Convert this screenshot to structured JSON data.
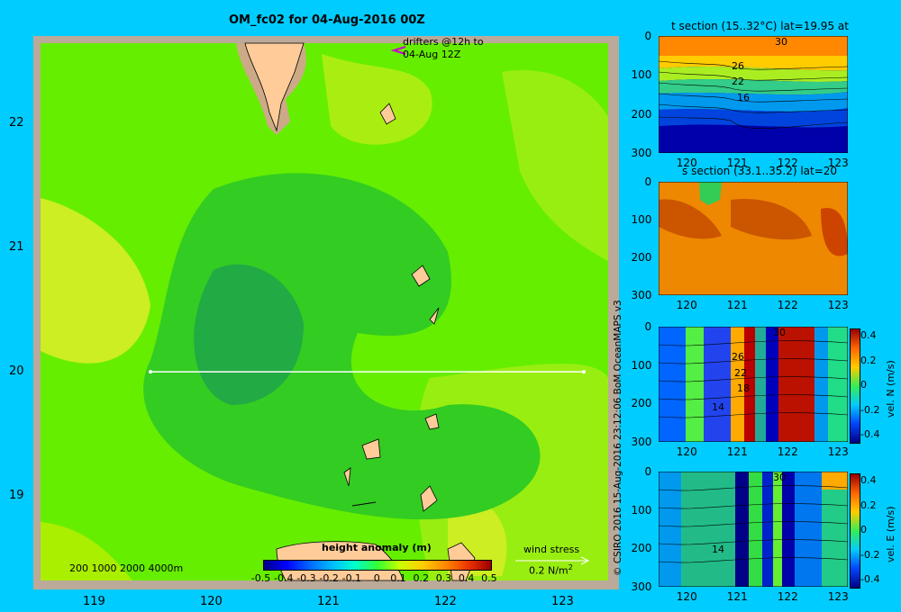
{
  "chart_data": [
    {
      "type": "heatmap",
      "title": "OM_fc02 for 04-Aug-2016 00Z",
      "xticks": [
        "119",
        "120",
        "121",
        "122",
        "123"
      ],
      "yticks": [
        "22",
        "21",
        "20",
        "19"
      ],
      "xlim": [
        118.5,
        123.5
      ],
      "ylim": [
        18.25,
        22.7
      ],
      "colorbar": {
        "label": "height anomaly  (m)",
        "ticks": [
          "-0.5",
          "-0.4",
          "-0.3",
          "-0.2",
          "-0.1",
          "0",
          "0.1",
          "0.2",
          "0.3",
          "0.4",
          "0.5"
        ],
        "range": [
          -0.5,
          0.5
        ]
      },
      "annotations": {
        "drifters": [
          "drifters @12h to",
          "04-Aug 12Z"
        ],
        "depth_legend": "200  1000  2000  4000m",
        "wind_stress_label": "wind stress",
        "wind_stress_value": "0.2 N/m",
        "wind_stress_exp": "2"
      },
      "section_line": {
        "lat": 20,
        "lon_start": 119.5,
        "lon_end": 123.2
      },
      "colors": {
        "background": "#00ccff",
        "land": "#ffcc99",
        "shelf": "#ccaa88"
      }
    },
    {
      "type": "heatmap",
      "title": "t section (15..32°C) lat=19.95 at",
      "xticks": [
        "120",
        "121",
        "122",
        "123"
      ],
      "yticks": [
        "0",
        "100",
        "200",
        "300"
      ],
      "contour_labels": [
        "30",
        "26",
        "22",
        "16"
      ]
    },
    {
      "type": "heatmap",
      "title": "s section (33.1..35.2) lat=20",
      "xticks": [
        "120",
        "121",
        "122",
        "123"
      ],
      "yticks": [
        "0",
        "100",
        "200",
        "300"
      ]
    },
    {
      "type": "heatmap",
      "title": "",
      "xticks": [
        "120",
        "121",
        "122",
        "123"
      ],
      "yticks": [
        "0",
        "100",
        "200",
        "300"
      ],
      "contour_labels": [
        "30",
        "26",
        "22",
        "18",
        "14"
      ],
      "colorbar": {
        "label": "vel. N (m/s)",
        "ticks": [
          "0.4",
          "0.2",
          "0",
          "-0.2",
          "-0.4"
        ],
        "range": [
          -0.4,
          0.4
        ]
      }
    },
    {
      "type": "heatmap",
      "title": "",
      "xticks": [
        "120",
        "121",
        "122",
        "123"
      ],
      "yticks": [
        "0",
        "100",
        "200",
        "300"
      ],
      "contour_labels": [
        "30",
        "14"
      ],
      "colorbar": {
        "label": "vel. E (m/s)",
        "ticks": [
          "0.4",
          "0.2",
          "0",
          "-0.2",
          "-0.4"
        ],
        "range": [
          -0.4,
          0.4
        ]
      }
    }
  ],
  "credit": "© CSIRO 2016   15-Aug-2016 23:12:06 BoM OceanMAPS v3"
}
